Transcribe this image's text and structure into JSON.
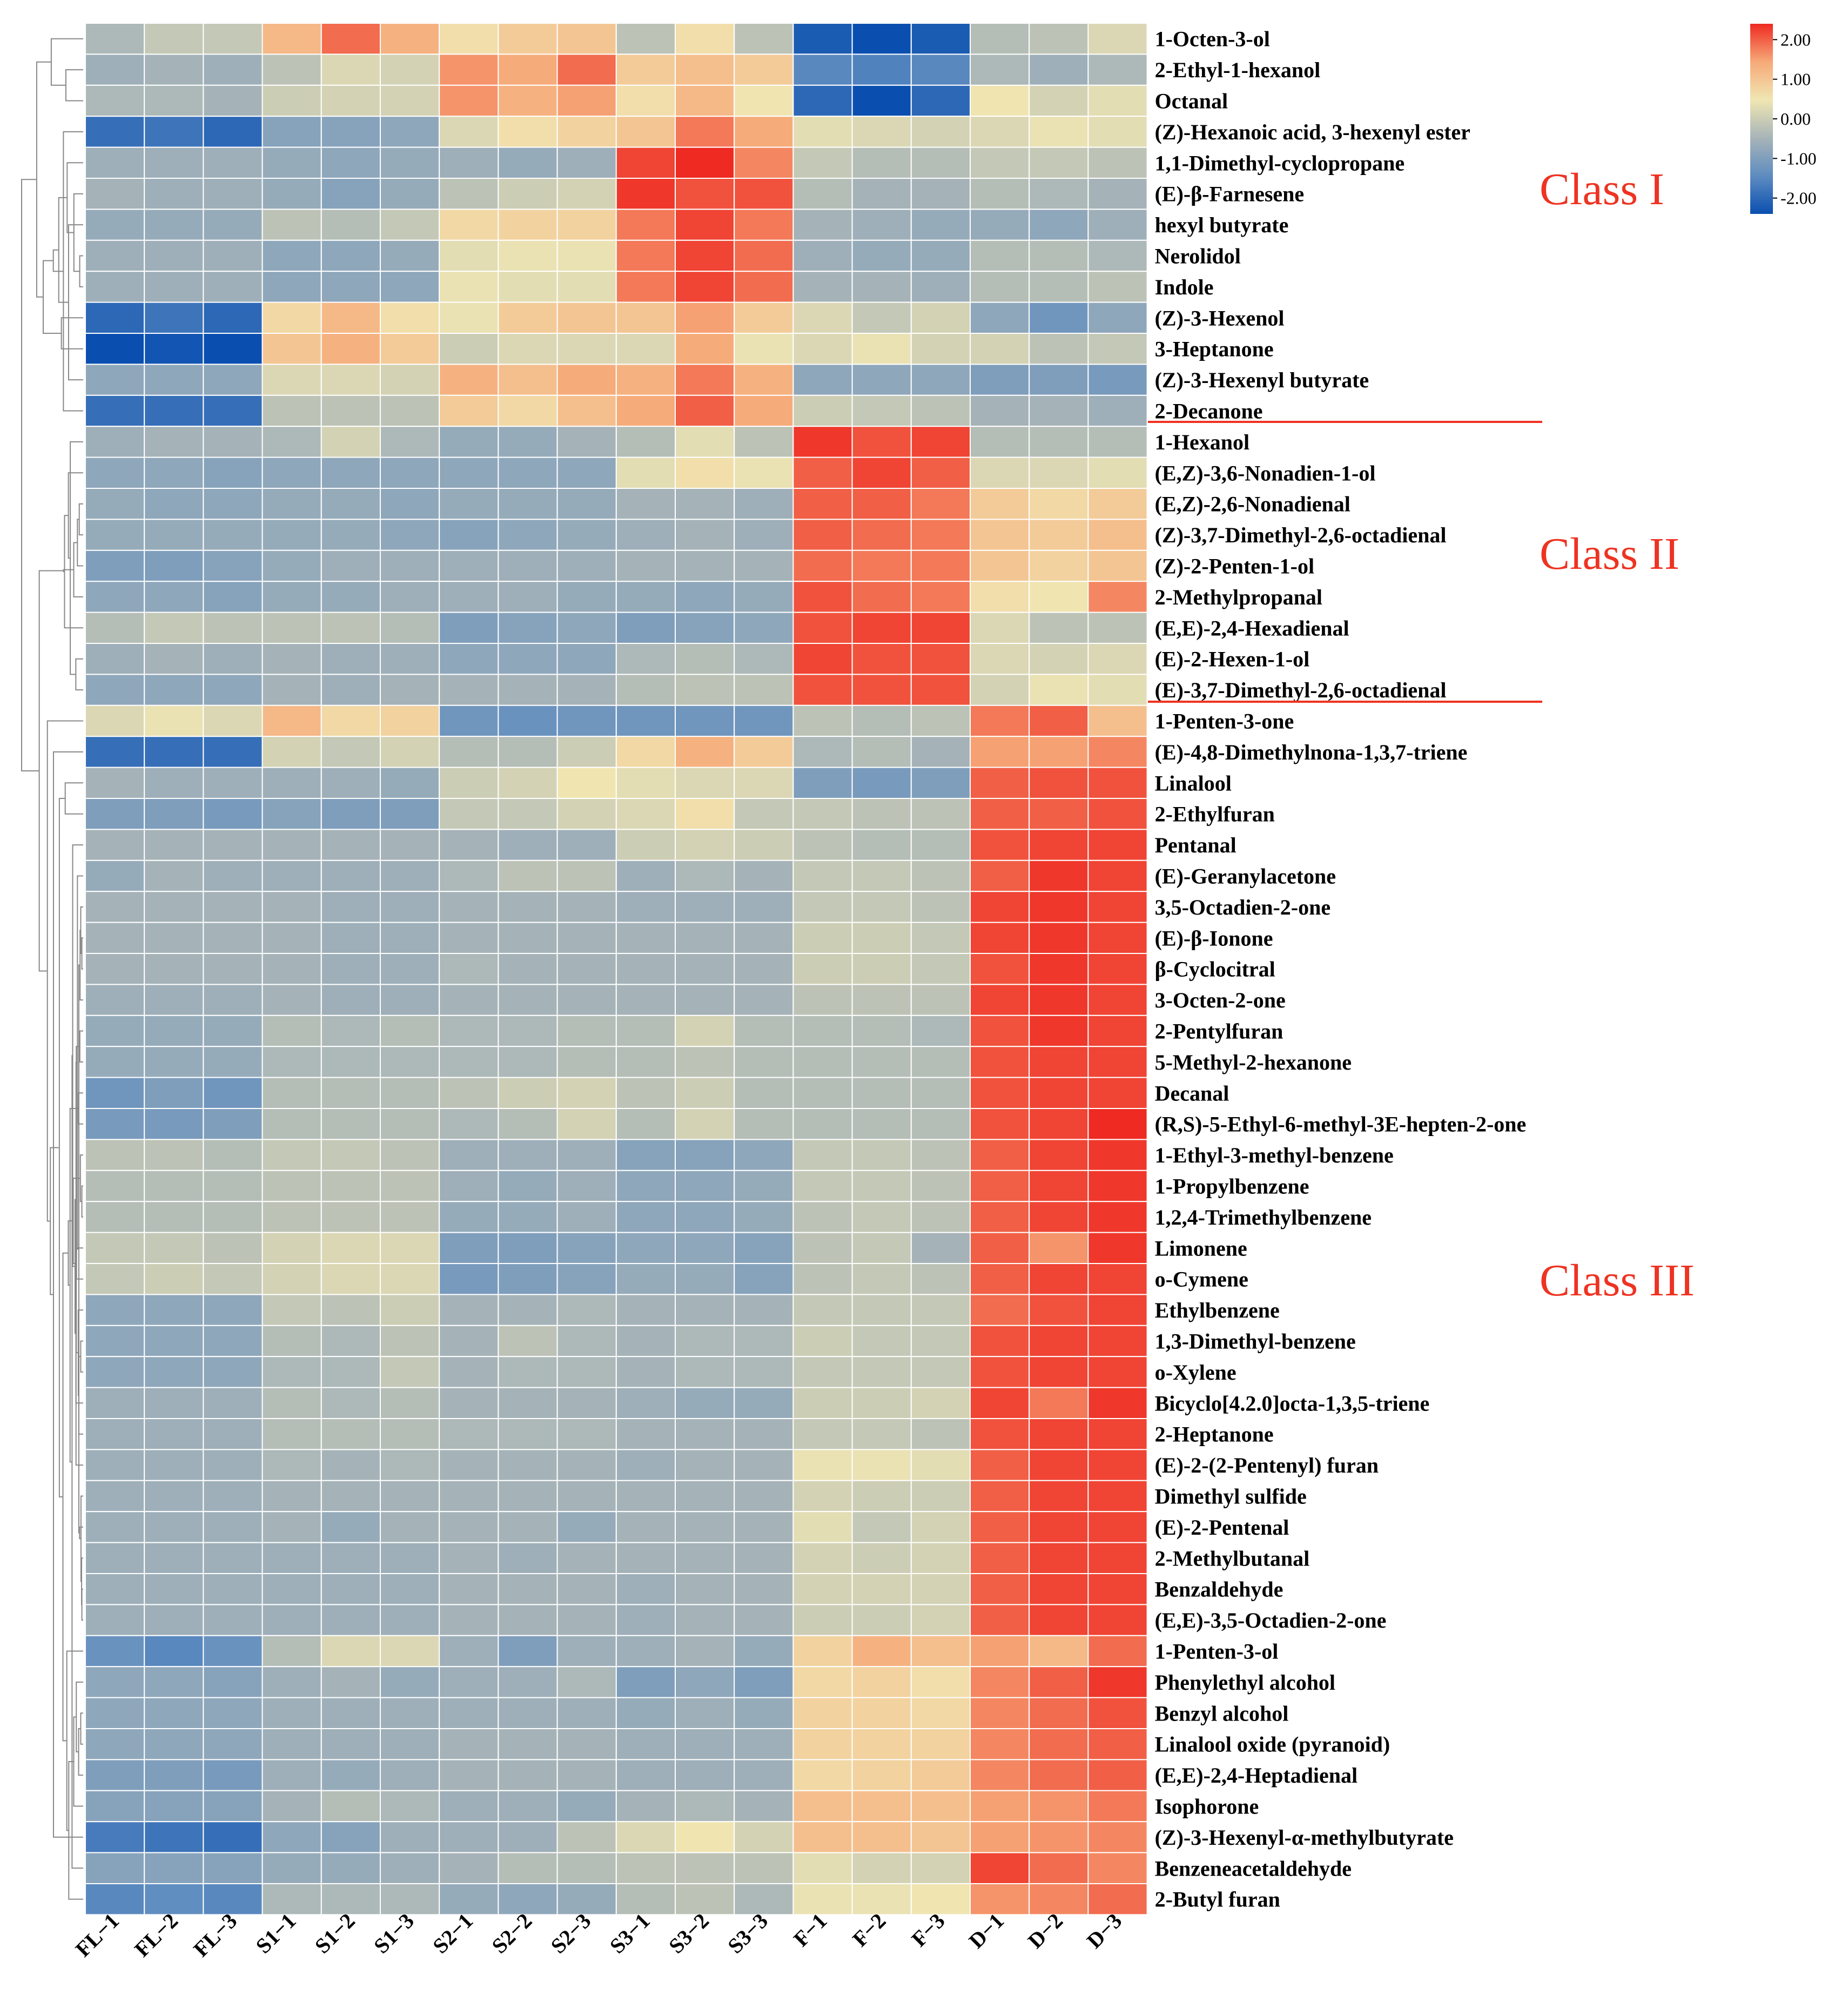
{
  "chart_data": {
    "type": "heatmap",
    "columns": [
      "FL−1",
      "FL−2",
      "FL−3",
      "S1−1",
      "S1−2",
      "S1−3",
      "S2−1",
      "S2−2",
      "S2−3",
      "S3−1",
      "S3−2",
      "S3−3",
      "F−1",
      "F−2",
      "F−3",
      "D−1",
      "D−2",
      "D−3"
    ],
    "rows": [
      "1-Octen-3-ol",
      "2-Ethyl-1-hexanol",
      "Octanal",
      "(Z)-Hexanoic acid, 3-hexenyl ester",
      "1,1-Dimethyl-cyclopropane",
      "(E)-β-Farnesene",
      "hexyl butyrate",
      "Nerolidol",
      "Indole",
      "(Z)-3-Hexenol",
      "3-Heptanone",
      "(Z)-3-Hexenyl butyrate",
      "2-Decanone",
      "1-Hexanol",
      "(E,Z)-3,6-Nonadien-1-ol",
      "(E,Z)-2,6-Nonadienal",
      "(Z)-3,7-Dimethyl-2,6-octadienal",
      "(Z)-2-Penten-1-ol",
      "2-Methylpropanal",
      "(E,E)-2,4-Hexadienal",
      "(E)-2-Hexen-1-ol",
      "(E)-3,7-Dimethyl-2,6-octadienal",
      "1-Penten-3-one",
      "(E)-4,8-Dimethylnona-1,3,7-triene",
      "Linalool",
      "2-Ethylfuran",
      "Pentanal",
      "(E)-Geranylacetone",
      "3,5-Octadien-2-one",
      "(E)-β-Ionone",
      "β-Cyclocitral",
      "3-Octen-2-one",
      "2-Pentylfuran",
      "5-Methyl-2-hexanone",
      "Decanal",
      "(R,S)-5-Ethyl-6-methyl-3E-hepten-2-one",
      "1-Ethyl-3-methyl-benzene",
      "1-Propylbenzene",
      "1,2,4-Trimethylbenzene",
      "Limonene",
      "o-Cymene",
      "Ethylbenzene",
      "1,3-Dimethyl-benzene",
      "o-Xylene",
      "Bicyclo[4.2.0]octa-1,3,5-triene",
      "2-Heptanone",
      "(E)-2-(2-Pentenyl) furan",
      "Dimethyl sulfide",
      "(E)-2-Pentenal",
      "2-Methylbutanal",
      "Benzaldehyde",
      "(E,E)-3,5-Octadien-2-one",
      "1-Penten-3-ol",
      "Phenylethyl alcohol",
      "Benzyl alcohol",
      "Linalool oxide (pyranoid)",
      "(E,E)-2,4-Heptadienal",
      "Isophorone",
      "(Z)-3-Hexenyl-α-methylbutyrate",
      "Benzeneacetaldehyde",
      "2-Butyl furan"
    ],
    "values": [
      [
        -0.4,
        -0.1,
        -0.1,
        1.2,
        1.9,
        1.3,
        0.6,
        0.9,
        1.0,
        -0.2,
        0.6,
        -0.2,
        -2.2,
        -2.4,
        -2.2,
        -0.3,
        -0.2,
        0.2
      ],
      [
        -0.6,
        -0.5,
        -0.6,
        -0.2,
        0.2,
        0.1,
        1.6,
        1.4,
        1.9,
        0.9,
        1.1,
        0.9,
        -1.5,
        -1.6,
        -1.5,
        -0.4,
        -0.6,
        -0.4
      ],
      [
        -0.4,
        -0.4,
        -0.5,
        0.0,
        0.1,
        0.1,
        1.6,
        1.3,
        1.5,
        0.6,
        1.2,
        0.5,
        -2.0,
        -2.4,
        -2.0,
        0.5,
        0.1,
        0.3
      ],
      [
        -1.9,
        -1.8,
        -2.0,
        -0.9,
        -0.9,
        -0.8,
        0.2,
        0.6,
        0.8,
        1.0,
        1.8,
        1.4,
        0.3,
        0.2,
        0.1,
        0.2,
        0.4,
        0.3
      ],
      [
        -0.6,
        -0.6,
        -0.6,
        -0.7,
        -0.8,
        -0.7,
        -0.6,
        -0.7,
        -0.6,
        2.2,
        2.4,
        1.7,
        -0.1,
        -0.3,
        -0.3,
        -0.1,
        -0.1,
        -0.2
      ],
      [
        -0.5,
        -0.6,
        -0.6,
        -0.7,
        -0.9,
        -0.7,
        -0.2,
        0.0,
        0.1,
        2.3,
        2.1,
        2.1,
        -0.3,
        -0.5,
        -0.5,
        -0.3,
        -0.4,
        -0.5
      ],
      [
        -0.7,
        -0.7,
        -0.7,
        -0.2,
        -0.3,
        -0.1,
        0.7,
        0.8,
        0.8,
        1.8,
        2.2,
        1.8,
        -0.5,
        -0.6,
        -0.7,
        -0.7,
        -0.8,
        -0.6
      ],
      [
        -0.6,
        -0.6,
        -0.6,
        -0.8,
        -0.8,
        -0.7,
        0.3,
        0.4,
        0.4,
        1.8,
        2.2,
        1.9,
        -0.6,
        -0.7,
        -0.7,
        -0.3,
        -0.3,
        -0.4
      ],
      [
        -0.6,
        -0.6,
        -0.6,
        -0.8,
        -0.8,
        -0.8,
        0.4,
        0.3,
        0.3,
        1.8,
        2.2,
        1.9,
        -0.5,
        -0.5,
        -0.6,
        -0.3,
        -0.3,
        -0.2
      ],
      [
        -2.0,
        -1.8,
        -2.0,
        0.7,
        1.2,
        0.6,
        0.4,
        0.9,
        1.0,
        1.0,
        1.5,
        0.9,
        0.2,
        -0.1,
        0.1,
        -0.8,
        -1.2,
        -0.8
      ],
      [
        -2.4,
        -2.3,
        -2.4,
        1.0,
        1.3,
        0.9,
        0.0,
        0.2,
        0.2,
        0.2,
        1.4,
        0.4,
        0.2,
        0.4,
        0.1,
        0.1,
        -0.2,
        -0.1
      ],
      [
        -0.8,
        -0.8,
        -0.8,
        0.2,
        0.2,
        0.1,
        1.3,
        1.1,
        1.4,
        1.3,
        1.8,
        1.3,
        -0.8,
        -0.8,
        -0.8,
        -1.0,
        -1.0,
        -1.1
      ],
      [
        -1.9,
        -1.9,
        -1.9,
        -0.2,
        -0.2,
        -0.2,
        0.9,
        0.7,
        1.1,
        1.4,
        2.0,
        1.4,
        0.0,
        -0.1,
        -0.2,
        -0.5,
        -0.5,
        -0.6
      ],
      [
        -0.6,
        -0.5,
        -0.5,
        -0.4,
        0.1,
        -0.4,
        -0.7,
        -0.7,
        -0.5,
        -0.3,
        0.3,
        -0.2,
        2.3,
        2.1,
        2.2,
        -0.3,
        -0.3,
        -0.3
      ],
      [
        -0.8,
        -0.8,
        -0.9,
        -0.8,
        -0.8,
        -0.8,
        -0.8,
        -0.8,
        -0.8,
        0.3,
        0.6,
        0.4,
        2.0,
        2.2,
        2.0,
        0.2,
        0.2,
        0.3
      ],
      [
        -0.7,
        -0.8,
        -0.8,
        -0.7,
        -0.7,
        -0.8,
        -0.7,
        -0.7,
        -0.7,
        -0.5,
        -0.5,
        -0.6,
        2.0,
        2.0,
        1.8,
        0.9,
        0.7,
        0.9
      ],
      [
        -0.7,
        -0.7,
        -0.7,
        -0.7,
        -0.7,
        -0.8,
        -0.9,
        -0.8,
        -0.7,
        -0.6,
        -0.5,
        -0.6,
        2.0,
        1.9,
        1.8,
        1.0,
        0.9,
        1.1
      ],
      [
        -1.0,
        -1.0,
        -0.9,
        -0.7,
        -0.6,
        -0.6,
        -0.6,
        -0.6,
        -0.6,
        -0.5,
        -0.5,
        -0.5,
        1.9,
        1.8,
        1.8,
        1.0,
        0.8,
        1.0
      ],
      [
        -0.8,
        -0.8,
        -0.9,
        -0.7,
        -0.7,
        -0.6,
        -0.6,
        -0.6,
        -0.7,
        -0.7,
        -0.8,
        -0.7,
        2.1,
        1.9,
        1.8,
        0.6,
        0.5,
        1.7
      ],
      [
        -0.3,
        -0.1,
        -0.2,
        -0.2,
        -0.2,
        -0.3,
        -1.0,
        -0.9,
        -0.8,
        -1.0,
        -0.9,
        -0.8,
        2.1,
        2.2,
        2.2,
        0.2,
        -0.2,
        -0.2
      ],
      [
        -0.6,
        -0.5,
        -0.6,
        -0.5,
        -0.6,
        -0.6,
        -0.8,
        -0.8,
        -0.8,
        -0.4,
        -0.3,
        -0.4,
        2.2,
        2.1,
        2.1,
        0.2,
        0.1,
        0.2
      ],
      [
        -0.8,
        -0.8,
        -0.8,
        -0.5,
        -0.6,
        -0.5,
        -0.5,
        -0.5,
        -0.5,
        -0.3,
        -0.2,
        -0.2,
        2.1,
        2.1,
        2.1,
        0.1,
        0.4,
        0.3
      ],
      [
        0.2,
        0.4,
        0.2,
        1.2,
        0.7,
        0.8,
        -1.2,
        -1.3,
        -1.2,
        -1.2,
        -1.2,
        -1.2,
        -0.2,
        -0.3,
        -0.2,
        1.8,
        2.0,
        1.1
      ],
      [
        -1.9,
        -1.9,
        -1.9,
        0.1,
        -0.1,
        0.1,
        -0.3,
        -0.3,
        0.0,
        0.7,
        1.3,
        0.9,
        -0.4,
        -0.3,
        -0.5,
        1.5,
        1.5,
        1.7
      ],
      [
        -0.5,
        -0.6,
        -0.6,
        -0.6,
        -0.6,
        -0.7,
        0.0,
        0.1,
        0.5,
        0.3,
        0.2,
        0.2,
        -1.0,
        -1.1,
        -1.0,
        2.0,
        2.1,
        2.1
      ],
      [
        -1.0,
        -1.0,
        -1.1,
        -0.9,
        -1.0,
        -1.0,
        -0.1,
        -0.1,
        0.1,
        0.2,
        0.6,
        -0.1,
        -0.1,
        -0.2,
        -0.2,
        2.0,
        2.0,
        2.1
      ],
      [
        -0.5,
        -0.5,
        -0.5,
        -0.5,
        -0.5,
        -0.5,
        -0.5,
        -0.6,
        -0.6,
        0.0,
        0.1,
        0.0,
        -0.2,
        -0.3,
        -0.3,
        2.1,
        2.2,
        2.2
      ],
      [
        -0.7,
        -0.5,
        -0.6,
        -0.6,
        -0.6,
        -0.6,
        -0.4,
        -0.2,
        -0.2,
        -0.6,
        -0.4,
        -0.5,
        -0.1,
        -0.1,
        -0.2,
        2.0,
        2.3,
        2.2
      ],
      [
        -0.5,
        -0.5,
        -0.5,
        -0.5,
        -0.6,
        -0.6,
        -0.5,
        -0.5,
        -0.5,
        -0.6,
        -0.6,
        -0.6,
        -0.1,
        -0.1,
        -0.2,
        2.2,
        2.3,
        2.2
      ],
      [
        -0.5,
        -0.5,
        -0.5,
        -0.5,
        -0.6,
        -0.6,
        -0.5,
        -0.5,
        -0.5,
        -0.5,
        -0.5,
        -0.5,
        0.0,
        0.0,
        -0.1,
        2.2,
        2.3,
        2.2
      ],
      [
        -0.5,
        -0.5,
        -0.5,
        -0.5,
        -0.6,
        -0.6,
        -0.4,
        -0.5,
        -0.5,
        -0.5,
        -0.5,
        -0.5,
        0.0,
        0.0,
        -0.1,
        2.1,
        2.3,
        2.2
      ],
      [
        -0.6,
        -0.6,
        -0.6,
        -0.5,
        -0.6,
        -0.6,
        -0.5,
        -0.5,
        -0.5,
        -0.5,
        -0.5,
        -0.5,
        -0.2,
        -0.2,
        -0.2,
        2.2,
        2.3,
        2.2
      ],
      [
        -0.7,
        -0.7,
        -0.7,
        -0.3,
        -0.4,
        -0.3,
        -0.4,
        -0.4,
        -0.3,
        -0.3,
        0.1,
        -0.3,
        -0.3,
        -0.3,
        -0.4,
        2.1,
        2.3,
        2.2
      ],
      [
        -0.7,
        -0.7,
        -0.7,
        -0.4,
        -0.4,
        -0.4,
        -0.4,
        -0.4,
        -0.3,
        -0.3,
        -0.2,
        -0.3,
        -0.3,
        -0.3,
        -0.3,
        2.1,
        2.2,
        2.2
      ],
      [
        -1.2,
        -1.0,
        -1.2,
        -0.3,
        -0.3,
        -0.3,
        -0.2,
        0.0,
        0.1,
        -0.2,
        0.0,
        -0.3,
        -0.3,
        -0.3,
        -0.3,
        2.1,
        2.2,
        2.2
      ],
      [
        -1.1,
        -1.1,
        -1.0,
        -0.3,
        -0.3,
        -0.3,
        -0.4,
        -0.3,
        0.1,
        -0.3,
        0.1,
        -0.3,
        -0.3,
        -0.3,
        -0.3,
        2.1,
        2.2,
        2.4
      ],
      [
        -0.2,
        -0.2,
        -0.3,
        -0.1,
        -0.1,
        -0.2,
        -0.6,
        -0.6,
        -0.6,
        -0.9,
        -0.9,
        -0.8,
        -0.1,
        -0.1,
        -0.2,
        2.0,
        2.2,
        2.3
      ],
      [
        -0.3,
        -0.3,
        -0.3,
        -0.2,
        -0.2,
        -0.2,
        -0.6,
        -0.7,
        -0.6,
        -0.8,
        -0.8,
        -0.7,
        -0.1,
        -0.1,
        -0.2,
        2.0,
        2.2,
        2.3
      ],
      [
        -0.3,
        -0.3,
        -0.3,
        -0.2,
        -0.2,
        -0.2,
        -0.7,
        -0.7,
        -0.6,
        -0.8,
        -0.8,
        -0.7,
        -0.2,
        -0.1,
        -0.2,
        2.0,
        2.2,
        2.3
      ],
      [
        -0.1,
        -0.1,
        -0.2,
        0.1,
        0.2,
        0.2,
        -1.0,
        -1.0,
        -0.9,
        -0.8,
        -0.8,
        -0.9,
        -0.2,
        -0.1,
        -0.5,
        2.0,
        1.6,
        2.3
      ],
      [
        -0.1,
        0.0,
        -0.1,
        0.1,
        0.2,
        0.2,
        -1.1,
        -1.0,
        -0.9,
        -0.7,
        -0.7,
        -0.9,
        -0.2,
        -0.1,
        -0.2,
        2.0,
        2.2,
        2.2
      ],
      [
        -0.8,
        -0.8,
        -0.8,
        -0.1,
        -0.2,
        0.0,
        -0.5,
        -0.5,
        -0.4,
        -0.5,
        -0.5,
        -0.5,
        -0.1,
        -0.1,
        -0.1,
        1.9,
        2.1,
        2.2
      ],
      [
        -0.8,
        -0.8,
        -0.8,
        -0.3,
        -0.4,
        -0.2,
        -0.5,
        -0.2,
        -0.4,
        -0.5,
        -0.4,
        -0.4,
        0.0,
        -0.1,
        -0.1,
        2.1,
        2.2,
        2.2
      ],
      [
        -0.8,
        -0.8,
        -0.8,
        -0.4,
        -0.4,
        -0.1,
        -0.5,
        -0.4,
        -0.4,
        -0.5,
        -0.4,
        -0.4,
        -0.1,
        -0.1,
        -0.1,
        2.1,
        2.2,
        2.2
      ],
      [
        -0.6,
        -0.6,
        -0.6,
        -0.3,
        -0.4,
        -0.3,
        -0.5,
        -0.5,
        -0.5,
        -0.6,
        -0.7,
        -0.7,
        0.0,
        0.0,
        0.1,
        2.2,
        1.8,
        2.3
      ],
      [
        -0.6,
        -0.6,
        -0.6,
        -0.3,
        -0.3,
        -0.3,
        -0.4,
        -0.4,
        -0.4,
        -0.5,
        -0.5,
        -0.5,
        -0.1,
        -0.1,
        -0.2,
        2.1,
        2.2,
        2.2
      ],
      [
        -0.6,
        -0.6,
        -0.6,
        -0.4,
        -0.5,
        -0.4,
        -0.5,
        -0.5,
        -0.5,
        -0.6,
        -0.5,
        -0.5,
        0.4,
        0.4,
        0.3,
        2.0,
        2.2,
        2.2
      ],
      [
        -0.6,
        -0.6,
        -0.6,
        -0.5,
        -0.5,
        -0.5,
        -0.5,
        -0.5,
        -0.5,
        -0.5,
        -0.5,
        -0.5,
        0.1,
        0.0,
        0.0,
        2.0,
        2.2,
        2.2
      ],
      [
        -0.6,
        -0.6,
        -0.6,
        -0.5,
        -0.7,
        -0.5,
        -0.5,
        -0.5,
        -0.7,
        -0.5,
        -0.5,
        -0.5,
        0.3,
        -0.1,
        0.1,
        2.0,
        2.2,
        2.2
      ],
      [
        -0.6,
        -0.6,
        -0.6,
        -0.6,
        -0.6,
        -0.6,
        -0.5,
        -0.6,
        -0.5,
        -0.5,
        -0.5,
        -0.5,
        0.1,
        0.0,
        0.1,
        2.0,
        2.2,
        2.2
      ],
      [
        -0.6,
        -0.6,
        -0.6,
        -0.6,
        -0.6,
        -0.6,
        -0.5,
        -0.5,
        -0.5,
        -0.6,
        -0.5,
        -0.5,
        0.1,
        0.1,
        0.1,
        2.0,
        2.2,
        2.2
      ],
      [
        -0.6,
        -0.6,
        -0.6,
        -0.6,
        -0.6,
        -0.6,
        -0.5,
        -0.5,
        -0.5,
        -0.6,
        -0.5,
        -0.5,
        0.0,
        0.0,
        0.1,
        2.0,
        2.2,
        2.2
      ],
      [
        -1.3,
        -1.5,
        -1.3,
        -0.3,
        0.2,
        0.2,
        -0.6,
        -1.0,
        -0.6,
        -0.6,
        -0.5,
        -0.7,
        0.8,
        1.3,
        1.1,
        1.5,
        1.2,
        1.9
      ],
      [
        -0.8,
        -0.8,
        -0.9,
        -0.6,
        -0.5,
        -0.7,
        -0.6,
        -0.6,
        -0.4,
        -1.0,
        -0.8,
        -1.0,
        0.7,
        0.8,
        0.6,
        1.7,
        2.0,
        2.3
      ],
      [
        -0.8,
        -0.8,
        -0.8,
        -0.6,
        -0.6,
        -0.6,
        -0.6,
        -0.6,
        -0.6,
        -0.7,
        -0.6,
        -0.7,
        0.8,
        0.8,
        0.7,
        1.7,
        1.9,
        2.1
      ],
      [
        -0.8,
        -0.8,
        -0.8,
        -0.6,
        -0.6,
        -0.6,
        -0.5,
        -0.5,
        -0.5,
        -0.6,
        -0.6,
        -0.6,
        0.8,
        0.8,
        0.8,
        1.7,
        1.9,
        2.0
      ],
      [
        -1.0,
        -1.0,
        -1.1,
        -0.6,
        -0.7,
        -0.6,
        -0.5,
        -0.5,
        -0.5,
        -0.6,
        -0.6,
        -0.6,
        0.7,
        0.8,
        0.9,
        1.7,
        1.9,
        2.0
      ],
      [
        -0.9,
        -0.9,
        -0.9,
        -0.5,
        -0.3,
        -0.4,
        -0.6,
        -0.6,
        -0.7,
        -0.5,
        -0.4,
        -0.5,
        1.1,
        1.1,
        1.1,
        1.5,
        1.6,
        1.8
      ],
      [
        -1.7,
        -1.8,
        -1.9,
        -0.8,
        -0.9,
        -0.6,
        -0.6,
        -0.6,
        -0.2,
        0.2,
        0.5,
        0.1,
        1.1,
        1.1,
        1.0,
        1.5,
        1.6,
        1.7
      ],
      [
        -0.9,
        -0.9,
        -0.9,
        -0.7,
        -0.7,
        -0.6,
        -0.5,
        -0.3,
        -0.3,
        -0.2,
        -0.2,
        -0.2,
        0.3,
        0.1,
        0.1,
        2.2,
        1.9,
        1.7
      ],
      [
        -1.5,
        -1.4,
        -1.5,
        -0.4,
        -0.4,
        -0.4,
        -0.7,
        -0.8,
        -0.7,
        -0.3,
        -0.2,
        -0.4,
        0.4,
        0.4,
        0.5,
        1.6,
        1.7,
        1.9
      ]
    ],
    "colorbar_ticks": [
      "2.00",
      "1.00",
      "0.00",
      "-1.00",
      "-2.00"
    ],
    "colorbar_range": [
      -2.4,
      2.4
    ],
    "colorscale": [
      "#0a4fb0",
      "#5e8cc0",
      "#a7b4b8",
      "#f0e6b2",
      "#f6a978",
      "#ee2a22"
    ],
    "class_labels": [
      "Class I",
      "Class II",
      "Class III"
    ],
    "class_color": "#ee3322",
    "dendrogram": "rows",
    "legend_position": "top-right",
    "title": "",
    "xlabel": "",
    "ylabel": ""
  }
}
